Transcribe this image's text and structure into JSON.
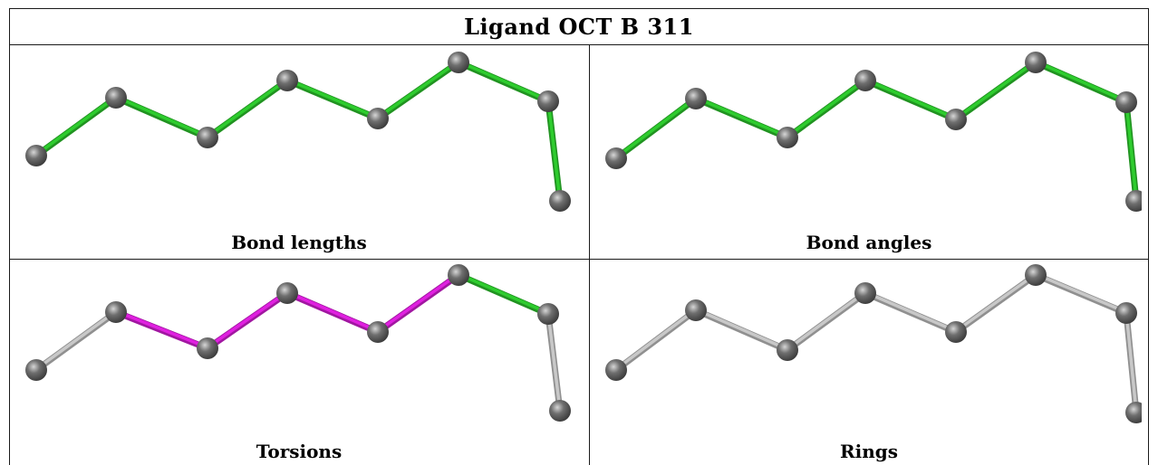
{
  "title": "Ligand OCT B 311",
  "panels": [
    {
      "caption": "Bond lengths",
      "bond_colors": [
        "#2ecc2e",
        "#2ecc2e",
        "#2ecc2e",
        "#2ecc2e",
        "#2ecc2e",
        "#2ecc2e",
        "#2ecc2e"
      ]
    },
    {
      "caption": "Bond angles",
      "bond_colors": [
        "#2ecc2e",
        "#2ecc2e",
        "#2ecc2e",
        "#2ecc2e",
        "#2ecc2e",
        "#2ecc2e",
        "#2ecc2e"
      ]
    },
    {
      "caption": "Torsions",
      "bond_colors": [
        "#c8c8c8",
        "#e020e0",
        "#e020e0",
        "#e020e0",
        "#e020e0",
        "#2ecc2e",
        "#c8c8c8"
      ]
    },
    {
      "caption": "Rings",
      "bond_colors": [
        "#c8c8c8",
        "#c8c8c8",
        "#c8c8c8",
        "#c8c8c8",
        "#c8c8c8",
        "#c8c8c8",
        "#c8c8c8"
      ]
    }
  ],
  "atom_color": "#6f6f6f"
}
